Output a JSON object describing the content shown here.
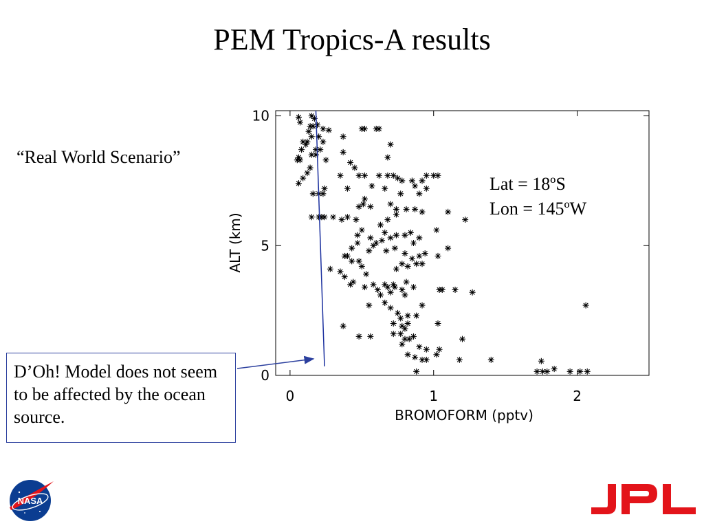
{
  "slide": {
    "title": "PEM Tropics-A results",
    "subtitle": "“Real World Scenario”",
    "lat": "Lat  = 18ºS",
    "lon": "Lon = 145ºW",
    "callout": "D’Oh! Model does not seem to be affected by the ocean source.",
    "logos": {
      "nasa": "NASA",
      "jpl": "JPL"
    }
  },
  "colors": {
    "arrow": "#2b3f9e",
    "model_line": "#1a2f9e",
    "jpl_red": "#e3141a",
    "nasa_blue": "#0b3d91"
  },
  "chart_data": {
    "type": "scatter",
    "xlabel": "BROMOFORM (pptv)",
    "ylabel": "ALT (km)",
    "xlim": [
      -0.1,
      2.5
    ],
    "ylim": [
      0,
      10.2
    ],
    "x_ticks": [
      0,
      1,
      2
    ],
    "y_ticks": [
      0,
      5,
      10
    ],
    "grid": false,
    "series": [
      {
        "name": "",
        "marker": "asterisk",
        "points": [
          [
            0.06,
            9.95
          ],
          [
            0.15,
            10.0
          ],
          [
            0.17,
            9.9
          ],
          [
            0.07,
            9.75
          ],
          [
            0.14,
            9.6
          ],
          [
            0.16,
            9.6
          ],
          [
            0.19,
            9.65
          ],
          [
            0.23,
            9.5
          ],
          [
            0.27,
            9.45
          ],
          [
            0.13,
            9.4
          ],
          [
            0.15,
            9.2
          ],
          [
            0.2,
            9.2
          ],
          [
            0.09,
            9.0
          ],
          [
            0.12,
            9.0
          ],
          [
            0.23,
            9.0
          ],
          [
            0.11,
            8.9
          ],
          [
            0.08,
            8.7
          ],
          [
            0.18,
            8.7
          ],
          [
            0.21,
            8.7
          ],
          [
            0.06,
            8.4
          ],
          [
            0.15,
            8.5
          ],
          [
            0.18,
            8.5
          ],
          [
            0.25,
            8.3
          ],
          [
            0.05,
            8.3
          ],
          [
            0.07,
            8.3
          ],
          [
            0.14,
            8.0
          ],
          [
            0.12,
            7.8
          ],
          [
            0.09,
            7.6
          ],
          [
            0.06,
            7.4
          ],
          [
            0.24,
            7.2
          ],
          [
            0.16,
            7.0
          ],
          [
            0.2,
            7.0
          ],
          [
            0.23,
            7.0
          ],
          [
            0.37,
            9.2
          ],
          [
            0.37,
            8.6
          ],
          [
            0.42,
            8.2
          ],
          [
            0.45,
            8.0
          ],
          [
            0.35,
            7.7
          ],
          [
            0.48,
            7.7
          ],
          [
            0.5,
            9.5
          ],
          [
            0.52,
            9.5
          ],
          [
            0.62,
            9.5
          ],
          [
            0.6,
            9.5
          ],
          [
            0.7,
            8.9
          ],
          [
            0.68,
            8.4
          ],
          [
            0.52,
            7.7
          ],
          [
            0.62,
            7.7
          ],
          [
            0.68,
            7.7
          ],
          [
            0.72,
            7.7
          ],
          [
            0.75,
            7.6
          ],
          [
            0.78,
            7.5
          ],
          [
            0.85,
            7.5
          ],
          [
            0.92,
            7.5
          ],
          [
            0.95,
            7.7
          ],
          [
            1.0,
            7.7
          ],
          [
            1.03,
            7.7
          ],
          [
            0.87,
            7.3
          ],
          [
            0.95,
            7.2
          ],
          [
            0.9,
            7.0
          ],
          [
            0.57,
            7.3
          ],
          [
            0.66,
            7.2
          ],
          [
            0.77,
            7.0
          ],
          [
            0.4,
            7.2
          ],
          [
            0.15,
            6.1
          ],
          [
            0.2,
            6.1
          ],
          [
            0.22,
            6.1
          ],
          [
            0.24,
            6.1
          ],
          [
            0.3,
            6.1
          ],
          [
            0.4,
            6.1
          ],
          [
            0.36,
            6.0
          ],
          [
            0.46,
            6.0
          ],
          [
            0.48,
            6.5
          ],
          [
            0.51,
            6.6
          ],
          [
            0.52,
            6.8
          ],
          [
            0.56,
            6.5
          ],
          [
            0.7,
            6.6
          ],
          [
            0.74,
            6.4
          ],
          [
            0.81,
            6.4
          ],
          [
            0.87,
            6.4
          ],
          [
            0.92,
            6.3
          ],
          [
            0.68,
            6.0
          ],
          [
            0.63,
            5.8
          ],
          [
            0.74,
            6.2
          ],
          [
            1.1,
            6.3
          ],
          [
            1.22,
            6.0
          ],
          [
            1.02,
            5.6
          ],
          [
            0.5,
            5.6
          ],
          [
            0.47,
            5.4
          ],
          [
            0.56,
            5.3
          ],
          [
            0.6,
            5.1
          ],
          [
            0.64,
            5.2
          ],
          [
            0.66,
            5.5
          ],
          [
            0.7,
            5.3
          ],
          [
            0.74,
            5.4
          ],
          [
            0.8,
            5.4
          ],
          [
            0.84,
            5.5
          ],
          [
            0.86,
            5.1
          ],
          [
            0.9,
            5.3
          ],
          [
            0.47,
            5.1
          ],
          [
            0.43,
            4.9
          ],
          [
            0.55,
            4.8
          ],
          [
            0.58,
            5.0
          ],
          [
            0.67,
            4.8
          ],
          [
            0.73,
            4.9
          ],
          [
            0.8,
            4.7
          ],
          [
            0.9,
            4.6
          ],
          [
            0.94,
            4.7
          ],
          [
            1.1,
            4.9
          ],
          [
            1.03,
            4.6
          ],
          [
            0.4,
            4.6
          ],
          [
            0.48,
            4.4
          ],
          [
            0.5,
            4.2
          ],
          [
            0.43,
            4.4
          ],
          [
            0.38,
            4.6
          ],
          [
            0.35,
            4.0
          ],
          [
            0.28,
            4.1
          ],
          [
            0.38,
            3.8
          ],
          [
            0.44,
            3.6
          ],
          [
            0.42,
            3.5
          ],
          [
            0.53,
            3.9
          ],
          [
            0.52,
            3.4
          ],
          [
            0.58,
            3.5
          ],
          [
            0.61,
            3.3
          ],
          [
            0.63,
            3.1
          ],
          [
            0.68,
            3.4
          ],
          [
            0.72,
            3.5
          ],
          [
            0.7,
            3.2
          ],
          [
            0.78,
            3.3
          ],
          [
            0.8,
            3.1
          ],
          [
            0.74,
            4.1
          ],
          [
            0.78,
            4.3
          ],
          [
            0.82,
            4.2
          ],
          [
            0.85,
            4.5
          ],
          [
            0.88,
            4.3
          ],
          [
            0.92,
            4.3
          ],
          [
            0.81,
            3.6
          ],
          [
            0.86,
            3.4
          ],
          [
            0.66,
            3.5
          ],
          [
            0.73,
            3.4
          ],
          [
            1.04,
            3.3
          ],
          [
            1.06,
            3.3
          ],
          [
            1.15,
            3.3
          ],
          [
            1.27,
            3.2
          ],
          [
            0.55,
            2.7
          ],
          [
            0.66,
            2.8
          ],
          [
            0.7,
            2.6
          ],
          [
            0.75,
            2.4
          ],
          [
            0.77,
            2.2
          ],
          [
            0.82,
            2.3
          ],
          [
            0.88,
            2.3
          ],
          [
            0.92,
            2.7
          ],
          [
            0.72,
            2.0
          ],
          [
            0.78,
            1.9
          ],
          [
            0.8,
            1.8
          ],
          [
            0.82,
            2.0
          ],
          [
            0.72,
            1.6
          ],
          [
            0.77,
            1.6
          ],
          [
            0.83,
            1.4
          ],
          [
            1.03,
            2.0
          ],
          [
            0.37,
            1.9
          ],
          [
            0.48,
            1.5
          ],
          [
            0.56,
            1.5
          ],
          [
            0.78,
            1.2
          ],
          [
            0.8,
            1.4
          ],
          [
            0.86,
            1.5
          ],
          [
            0.9,
            1.1
          ],
          [
            0.95,
            1.0
          ],
          [
            1.04,
            1.0
          ],
          [
            0.82,
            0.8
          ],
          [
            0.87,
            0.7
          ],
          [
            0.92,
            0.6
          ],
          [
            0.95,
            0.6
          ],
          [
            1.02,
            0.8
          ],
          [
            0.88,
            0.15
          ],
          [
            1.2,
            1.4
          ],
          [
            1.18,
            0.6
          ],
          [
            1.4,
            0.6
          ],
          [
            1.75,
            0.55
          ],
          [
            1.72,
            0.15
          ],
          [
            1.76,
            0.15
          ],
          [
            1.79,
            0.15
          ],
          [
            1.84,
            0.25
          ],
          [
            1.95,
            0.15
          ],
          [
            2.02,
            0.15
          ],
          [
            2.07,
            0.15
          ],
          [
            2.06,
            2.7
          ]
        ]
      }
    ],
    "model_line": [
      [
        0.18,
        10.2
      ],
      [
        0.24,
        0.35
      ]
    ]
  }
}
